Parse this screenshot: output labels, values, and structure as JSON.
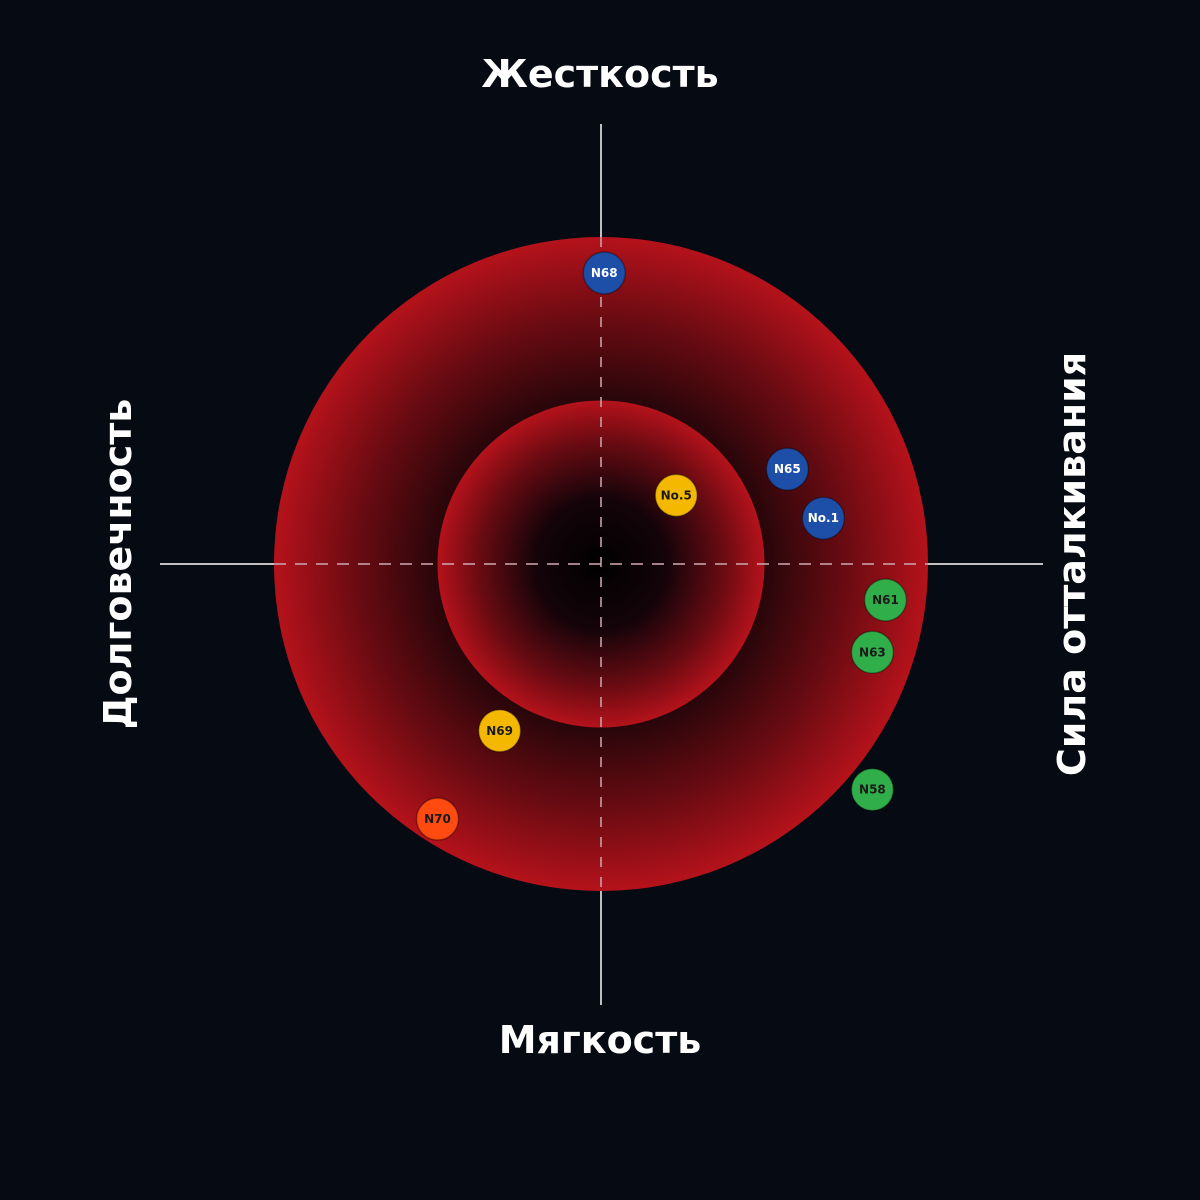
{
  "axes": {
    "top": "Жесткость",
    "bottom": "Мягкость",
    "left": "Долговечность",
    "right": "Сила отталкивания"
  },
  "colors": {
    "background": "#060a12",
    "ring_red": "#c0141c",
    "axis_line": "#bfbfbf",
    "blue": "#1d4fa8",
    "yellow": "#f5b800",
    "green": "#2fae4a",
    "orange": "#ff4a10"
  },
  "chart_data": {
    "type": "scatter",
    "xlim": [
      -1,
      1
    ],
    "ylim": [
      -1,
      1
    ],
    "rings": [
      0.5,
      1.0
    ],
    "points": [
      {
        "label": "N68",
        "x": 0.01,
        "y": 0.89,
        "color": "blue"
      },
      {
        "label": "N65",
        "x": 0.57,
        "y": 0.29,
        "color": "blue"
      },
      {
        "label": "No.5",
        "x": 0.23,
        "y": 0.21,
        "color": "yellow"
      },
      {
        "label": "No.1",
        "x": 0.68,
        "y": 0.14,
        "color": "blue"
      },
      {
        "label": "N61",
        "x": 0.87,
        "y": -0.11,
        "color": "green"
      },
      {
        "label": "N63",
        "x": 0.83,
        "y": -0.27,
        "color": "green"
      },
      {
        "label": "N58",
        "x": 0.83,
        "y": -0.69,
        "color": "green"
      },
      {
        "label": "N69",
        "x": -0.31,
        "y": -0.51,
        "color": "yellow"
      },
      {
        "label": "N70",
        "x": -0.5,
        "y": -0.78,
        "color": "orange"
      }
    ]
  }
}
